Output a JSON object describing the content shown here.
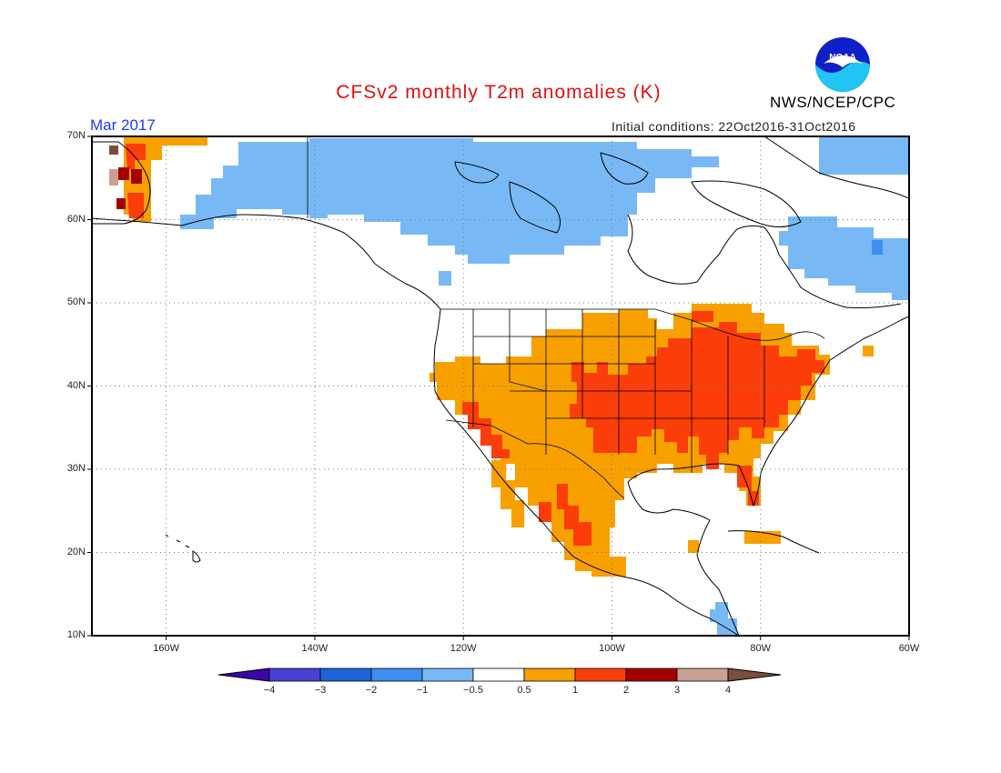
{
  "header": {
    "title": "CFSv2 monthly T2m anomalies (K)",
    "month": "Mar 2017",
    "initial_conditions": "Initial conditions: 22Oct2016-31Oct2016",
    "agency": "NWS/NCEP/CPC",
    "logo_text": "NOAA"
  },
  "map": {
    "lat_labels": [
      "70N",
      "60N",
      "50N",
      "40N",
      "30N",
      "20N",
      "10N"
    ],
    "lon_labels": [
      "160W",
      "140W",
      "120W",
      "100W",
      "80W",
      "60W"
    ],
    "lat_range": [
      10,
      70
    ],
    "lon_range": [
      -170,
      -60
    ]
  },
  "colorbar": {
    "labels": [
      "−4",
      "−3",
      "−2",
      "−1",
      "−0.5",
      "0.5",
      "1",
      "2",
      "3",
      "4"
    ],
    "colors": [
      "#3a06a8",
      "#4a40d4",
      "#1e64d8",
      "#3c8ef0",
      "#78b9f5",
      "#ffffff",
      "#f7a000",
      "#fb3d0a",
      "#a50000",
      "#c9a092",
      "#7a4d3e"
    ],
    "colors_note_omit": ""
  },
  "anomaly_colors": {
    "cold_light": "#78b9f5",
    "warm_1": "#f7a000",
    "warm_2": "#fb3d0a",
    "warm_3": "#a50000",
    "warm_4": "#c9a092",
    "warm_5": "#7a4d3e"
  }
}
